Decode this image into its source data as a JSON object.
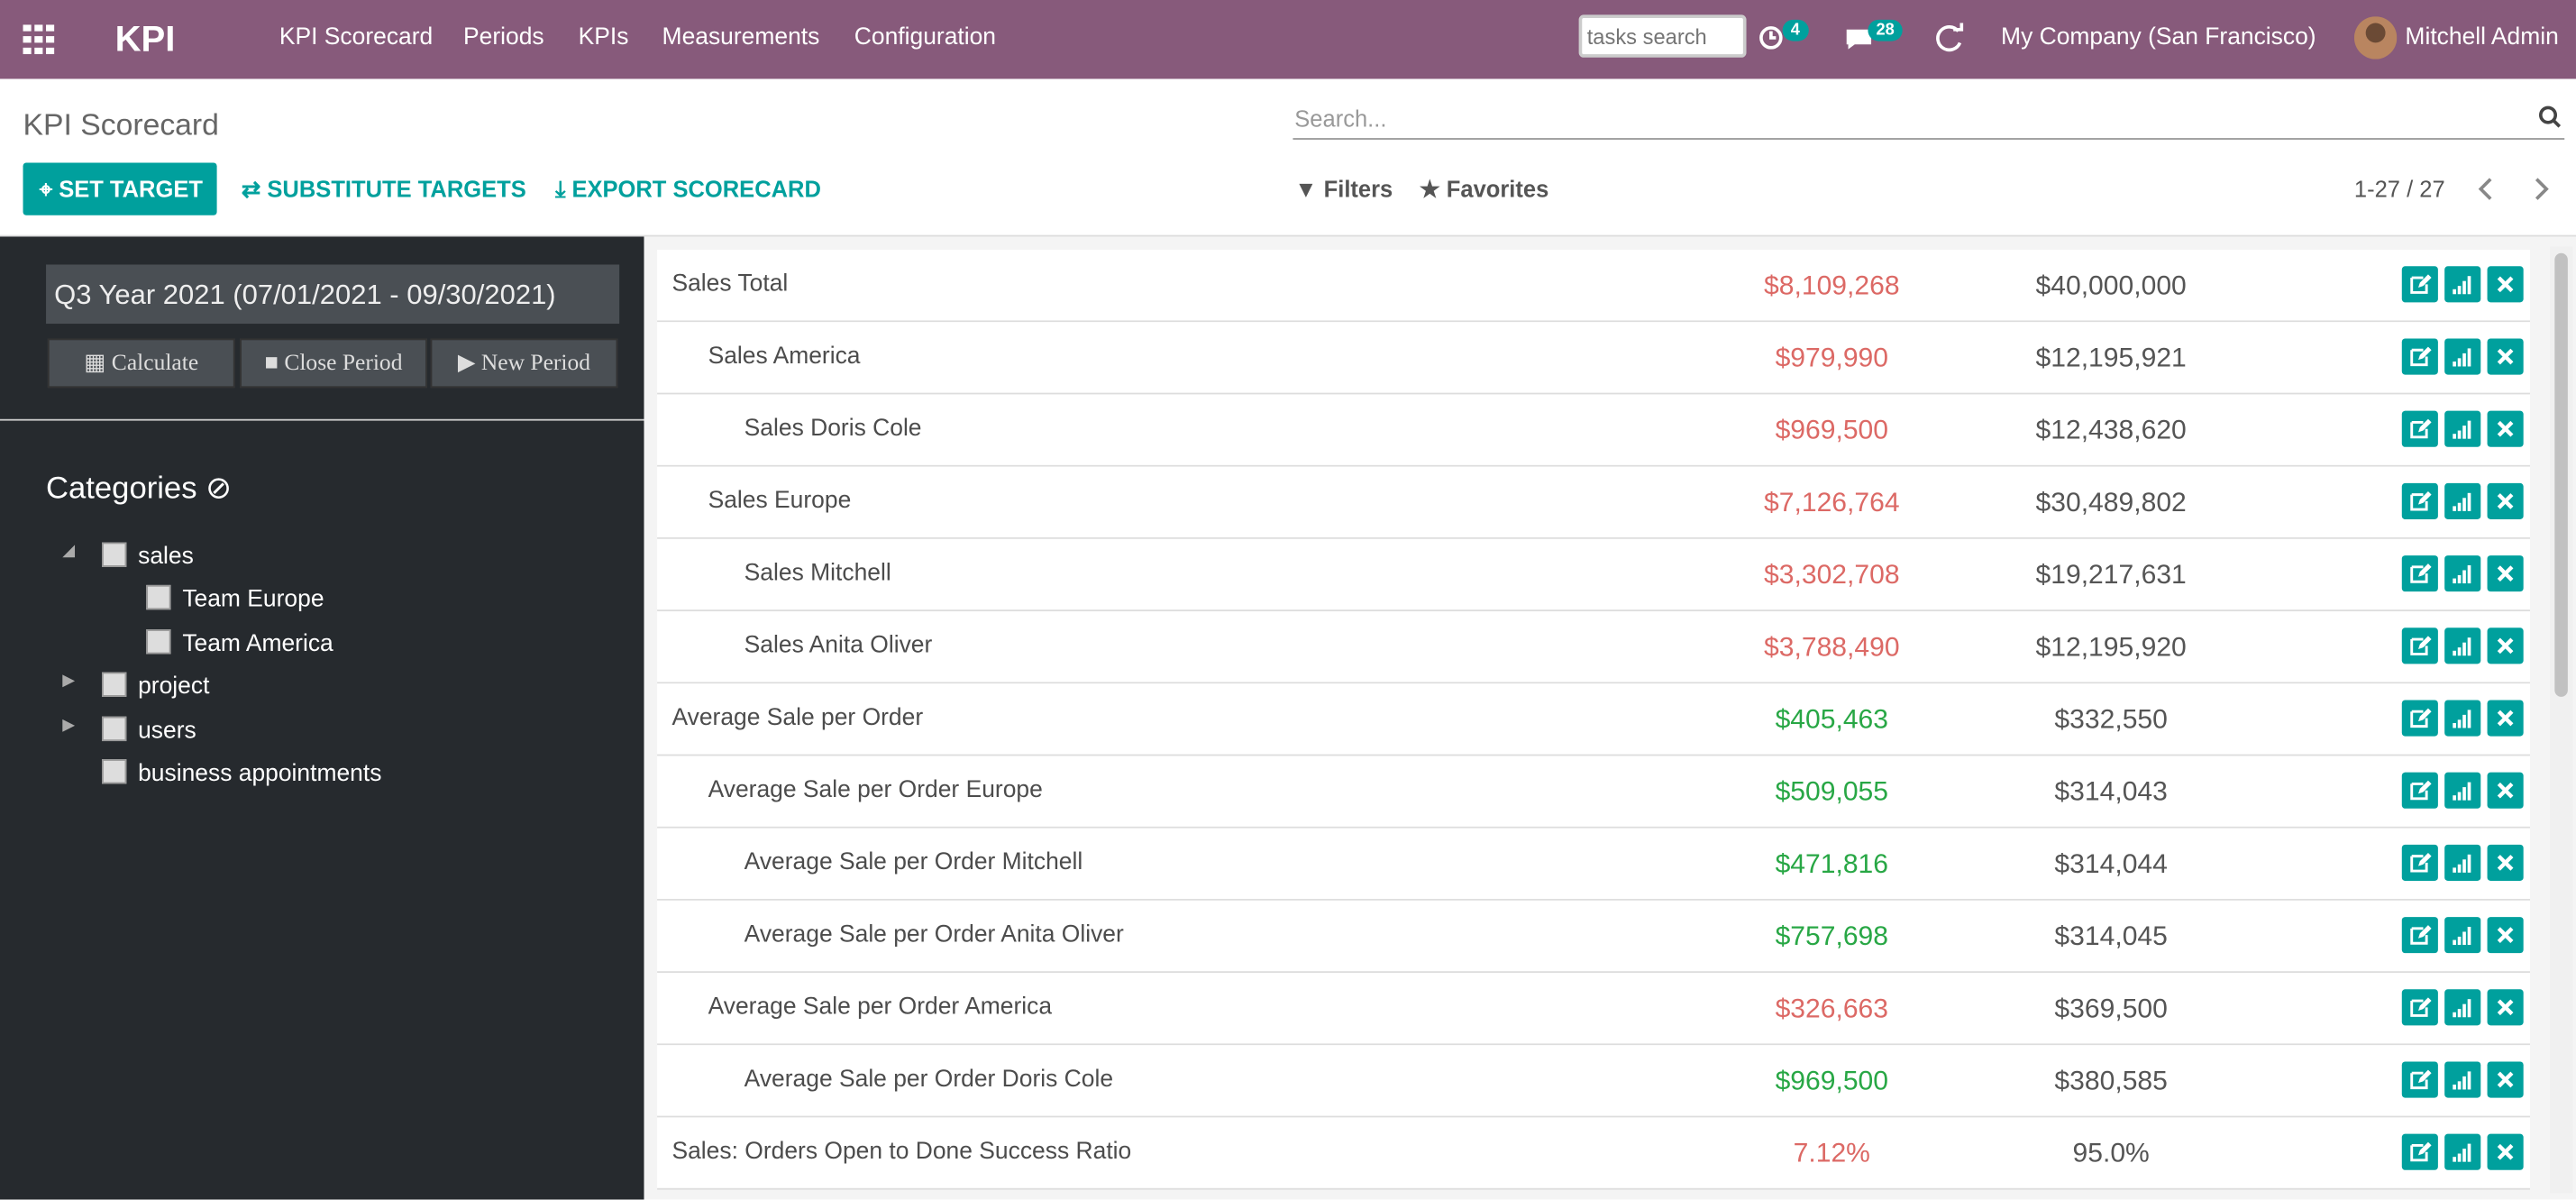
{
  "navbar": {
    "app": "KPI",
    "menu": [
      "KPI Scorecard",
      "Periods",
      "KPIs",
      "Measurements",
      "Configuration"
    ],
    "search_placeholder": "tasks search",
    "activity_count": "4",
    "message_count": "28",
    "company": "My Company (San Francisco)",
    "user": "Mitchell Admin"
  },
  "control_panel": {
    "title": "KPI Scorecard",
    "search_placeholder": "Search...",
    "buttons": [
      "SET TARGET",
      "SUBSTITUTE TARGETS",
      "EXPORT SCORECARD"
    ],
    "filters": "Filters",
    "favorites": "Favorites",
    "pager": "1-27 / 27"
  },
  "sidebar": {
    "period": "Q3 Year 2021 (07/01/2021 - 09/30/2021)",
    "period_buttons": [
      "Calculate",
      "Close Period",
      "New Period"
    ],
    "categories_title": "Categories",
    "categories": [
      {
        "label": "sales",
        "children": [
          {
            "label": "Team Europe"
          },
          {
            "label": "Team America"
          }
        ]
      },
      {
        "label": "project",
        "collapsed": true
      },
      {
        "label": "users",
        "collapsed": true
      },
      {
        "label": "business appointments"
      }
    ]
  },
  "scorecard": {
    "rows": [
      {
        "name": "Sales Total",
        "value": "$8,109,268",
        "target": "$40,000,000",
        "color": "#dc6965",
        "children": [
          {
            "name": "Sales America",
            "value": "$979,990",
            "target": "$12,195,921",
            "color": "#dc6965",
            "children": [
              {
                "name": "Sales Doris Cole",
                "value": "$969,500",
                "target": "$12,438,620",
                "color": "#dc6965"
              }
            ]
          },
          {
            "name": "Sales Europe",
            "value": "$7,126,764",
            "target": "$30,489,802",
            "color": "#dc6965",
            "children": [
              {
                "name": "Sales Mitchell",
                "value": "$3,302,708",
                "target": "$19,217,631",
                "color": "#dc6965"
              },
              {
                "name": "Sales Anita Oliver",
                "value": "$3,788,490",
                "target": "$12,195,920",
                "color": "#dc6965"
              }
            ]
          }
        ]
      },
      {
        "name": "Average Sale per Order",
        "value": "$405,463",
        "target": "$332,550",
        "color": "#28a745",
        "children": [
          {
            "name": "Average Sale per Order Europe",
            "value": "$509,055",
            "target": "$314,043",
            "color": "#28a745",
            "children": [
              {
                "name": "Average Sale per Order Mitchell",
                "value": "$471,816",
                "target": "$314,044",
                "color": "#28a745"
              },
              {
                "name": "Average Sale per Order Anita Oliver",
                "value": "$757,698",
                "target": "$314,045",
                "color": "#28a745"
              }
            ]
          },
          {
            "name": "Average Sale per Order America",
            "value": "$326,663",
            "target": "$369,500",
            "color": "#dc6965",
            "children": [
              {
                "name": "Average Sale per Order Doris Cole",
                "value": "$969,500",
                "target": "$380,585",
                "color": "#28a745"
              }
            ]
          }
        ]
      },
      {
        "name": "Sales: Orders Open to Done Success Ratio",
        "value": "7.12%",
        "target": "95.0%",
        "color": "#dc6965"
      }
    ]
  }
}
